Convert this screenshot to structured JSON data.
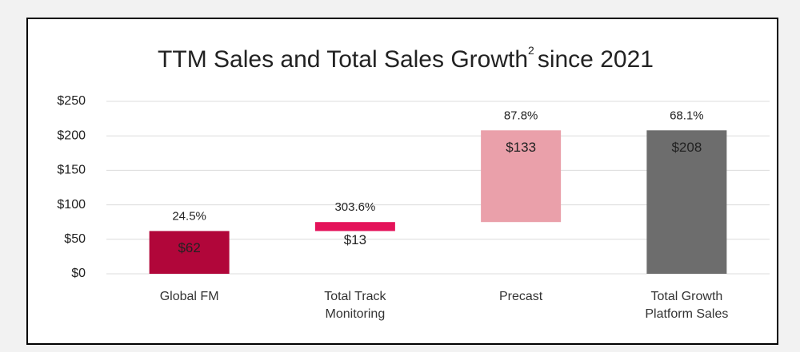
{
  "chart_data": {
    "type": "waterfall",
    "title": "TTM Sales and Total Sales Growth",
    "title_footnote": "2",
    "title_suffix": "since 2021",
    "categories": [
      "Global FM",
      "Total Track Monitoring",
      "Precast",
      "Total Growth Platform Sales"
    ],
    "values": [
      62,
      13,
      133,
      208
    ],
    "value_labels": [
      "$62",
      "$13",
      "$133",
      "$208"
    ],
    "annotations": [
      "24.5%",
      "303.6%",
      "87.8%",
      "68.1%"
    ],
    "colors": [
      "#b1063a",
      "#e4135a",
      "#eaa0aa",
      "#6d6d6d"
    ],
    "ylim": [
      0,
      250
    ],
    "yticks": [
      {
        "value": 0,
        "label": "$0"
      },
      {
        "value": 50,
        "label": "$50"
      },
      {
        "value": 100,
        "label": "$100"
      },
      {
        "value": 150,
        "label": "$150"
      },
      {
        "value": 200,
        "label": "$200"
      },
      {
        "value": 250,
        "label": "$250"
      }
    ],
    "grid": true
  }
}
